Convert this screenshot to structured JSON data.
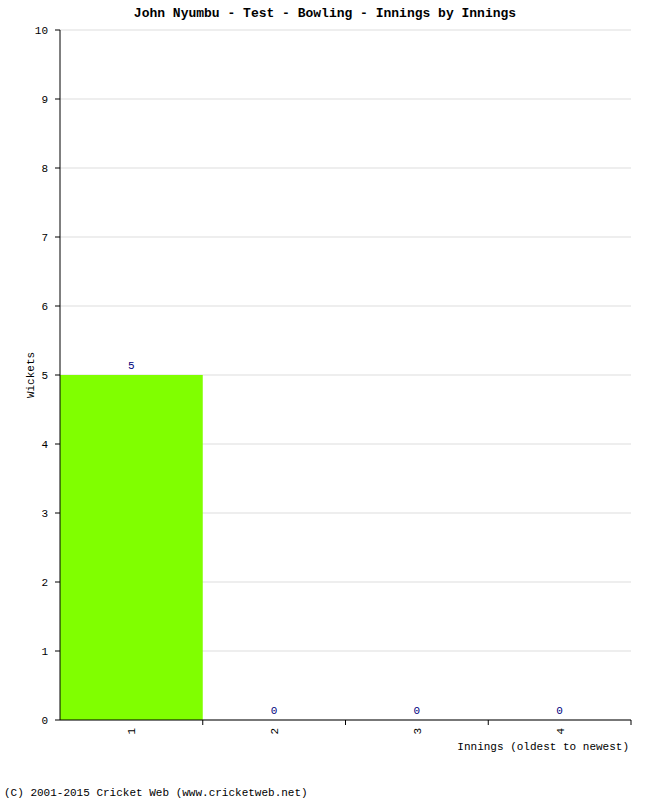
{
  "chart_data": {
    "type": "bar",
    "title": "John Nyumbu - Test - Bowling - Innings by Innings",
    "categories": [
      "1",
      "2",
      "3",
      "4"
    ],
    "values": [
      5,
      0,
      0,
      0
    ],
    "color": "#80ff00",
    "ylim": [
      0,
      10
    ],
    "yticks": [
      0,
      1,
      2,
      3,
      4,
      5,
      6,
      7,
      8,
      9,
      10
    ],
    "grid": true,
    "data_labels": true,
    "x_label": "Innings (oldest to newest)",
    "y_label": "Wickets",
    "annotations": [
      "(C) 2001-2015 Cricket Web (www.cricketweb.net)"
    ]
  }
}
